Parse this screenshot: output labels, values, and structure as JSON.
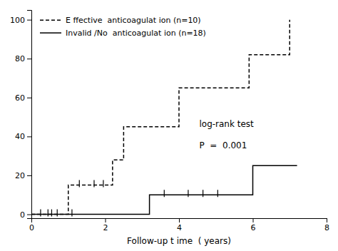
{
  "chart_data": {
    "type": "line",
    "xlabel": "Follow-up t ime  ( years)",
    "xlim": [
      0,
      8
    ],
    "ylim": [
      -2,
      105
    ],
    "xticks": [
      0,
      2,
      4,
      6,
      8
    ],
    "yticks": [
      0,
      20,
      40,
      60,
      80,
      100
    ],
    "legend": "upper left",
    "grid": false,
    "series": [
      {
        "name": "E ffective  anticoagulat ion (n=10)",
        "color": "#000000",
        "line_style": "dashed",
        "x": [
          0,
          1.0,
          1.0,
          2.2,
          2.2,
          2.5,
          2.5,
          4.0,
          4.0,
          5.9,
          5.9,
          7.0,
          7.0
        ],
        "values": [
          0,
          0,
          15,
          15,
          28,
          28,
          45,
          45,
          65,
          65,
          82,
          82,
          100
        ],
        "censored_x": [
          0.45,
          0.7,
          1.3,
          1.7,
          1.95
        ],
        "censored_values": [
          0,
          0,
          15,
          15,
          15
        ]
      },
      {
        "name": "Invalid /No  anticoagulat ion (n=18)",
        "color": "#000000",
        "line_style": "solid",
        "x": [
          0,
          3.2,
          3.2,
          6.0,
          6.0,
          7.2
        ],
        "values": [
          0,
          0,
          10,
          10,
          25,
          25
        ],
        "censored_x": [
          0.25,
          0.55,
          1.1,
          3.6,
          4.25,
          4.65,
          5.05
        ],
        "censored_values": [
          0,
          0,
          0,
          10,
          10,
          10,
          10
        ]
      }
    ],
    "annotations": [
      {
        "text": "log-rank test",
        "x": 4.55,
        "y": 45
      },
      {
        "text": "P  =  0.001",
        "x": 4.55,
        "y": 34
      }
    ]
  }
}
